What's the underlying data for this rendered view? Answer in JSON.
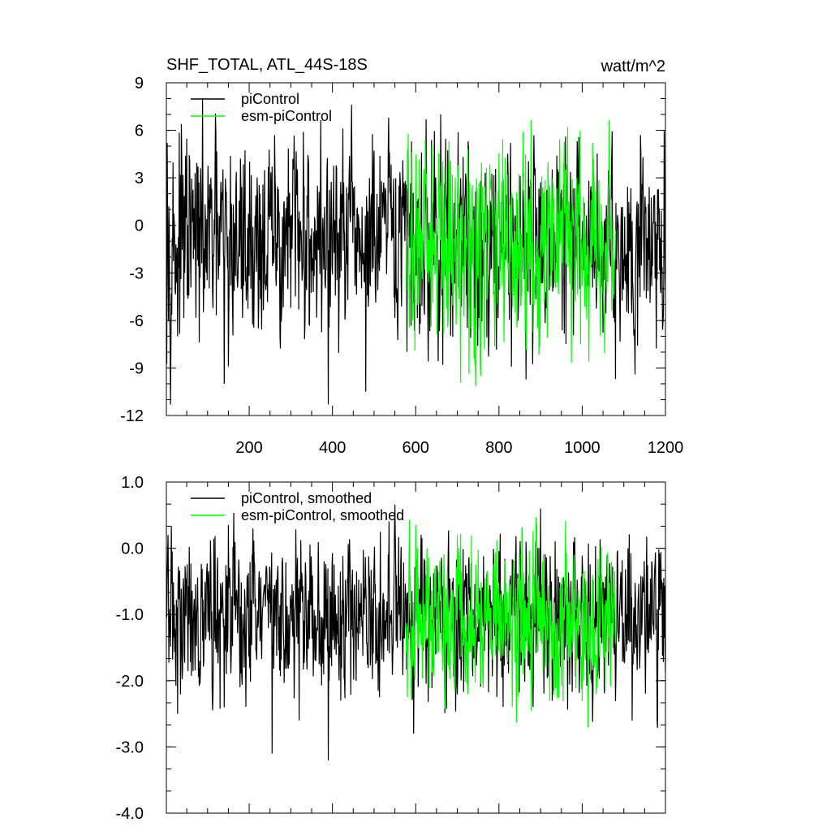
{
  "chart_data": [
    {
      "type": "line",
      "title": "SHF_TOTAL, ATL_44S-18S",
      "units": "watt/m^2",
      "xlim": [
        1,
        1200
      ],
      "ylim": [
        -12,
        9
      ],
      "yticks": [
        9,
        6,
        3,
        0,
        -3,
        -6,
        -9,
        -12
      ],
      "ytick_labels": [
        "9",
        "6",
        "3",
        "0",
        "-3",
        "-6",
        "-9",
        "-12"
      ],
      "xticks": [
        200,
        400,
        600,
        800,
        1000,
        1200
      ],
      "xtick_labels": [
        "200",
        "400",
        "600",
        "800",
        "1000",
        "1200"
      ],
      "legend_position": "top-left",
      "series": [
        {
          "name": "piControl",
          "color": "#000000",
          "x_range": [
            1,
            1200
          ],
          "mean": -1.0,
          "spread": 3.0,
          "spikes": [
            [
              3,
              5.2
            ],
            [
              12,
              -7.6
            ],
            [
              28,
              -7.0
            ],
            [
              140,
              -10.0
            ],
            [
              150,
              -8.9
            ],
            [
              305,
              4.2
            ],
            [
              330,
              5.9
            ],
            [
              390,
              -11.3
            ],
            [
              480,
              -10.5
            ],
            [
              535,
              6.8
            ],
            [
              590,
              5.3
            ],
            [
              660,
              7.0
            ],
            [
              665,
              -8.8
            ],
            [
              1080,
              -9.7
            ],
            [
              1140,
              5.7
            ],
            [
              1195,
              -5.7
            ]
          ]
        },
        {
          "name": "esm-piControl",
          "color": "#00ff00",
          "x_range": [
            577,
            1080
          ],
          "mean": -1.2,
          "spread": 3.0,
          "spikes": [
            [
              598,
              -7.9
            ],
            [
              740,
              -8.4
            ],
            [
              858,
              5.9
            ],
            [
              1025,
              5.2
            ],
            [
              680,
              5.3
            ]
          ]
        }
      ]
    },
    {
      "type": "line",
      "title": "",
      "xlim": [
        1,
        1200
      ],
      "ylim": [
        -4,
        1
      ],
      "yticks": [
        1,
        0,
        -1,
        -2,
        -3,
        -4
      ],
      "ytick_labels": [
        "1.0",
        "0.0",
        "-1.0",
        "-2.0",
        "-3.0",
        "-4.0"
      ],
      "xticks": [
        200,
        400,
        600,
        800,
        1000,
        1200
      ],
      "legend_position": "top-left",
      "series": [
        {
          "name": "piControl, smoothed",
          "color": "#000000",
          "x_range": [
            1,
            1200
          ],
          "mean": -1.0,
          "spread": 0.55,
          "spikes": [
            [
              5,
              0.2
            ],
            [
              28,
              -2.5
            ],
            [
              140,
              -2.4
            ],
            [
              150,
              0.35
            ],
            [
              255,
              -3.1
            ],
            [
              320,
              -2.6
            ],
            [
              390,
              -3.2
            ],
            [
              420,
              -2.3
            ],
            [
              595,
              -2.8
            ],
            [
              900,
              0.6
            ],
            [
              1120,
              -2.6
            ],
            [
              1180,
              -2.6
            ]
          ]
        },
        {
          "name": "esm-piControl, smoothed",
          "color": "#00ff00",
          "x_range": [
            577,
            1080
          ],
          "mean": -1.1,
          "spread": 0.55,
          "spikes": [
            [
              600,
              0.35
            ],
            [
              700,
              -2.55
            ],
            [
              855,
              0.3
            ],
            [
              700,
              0.2
            ]
          ]
        }
      ]
    }
  ]
}
